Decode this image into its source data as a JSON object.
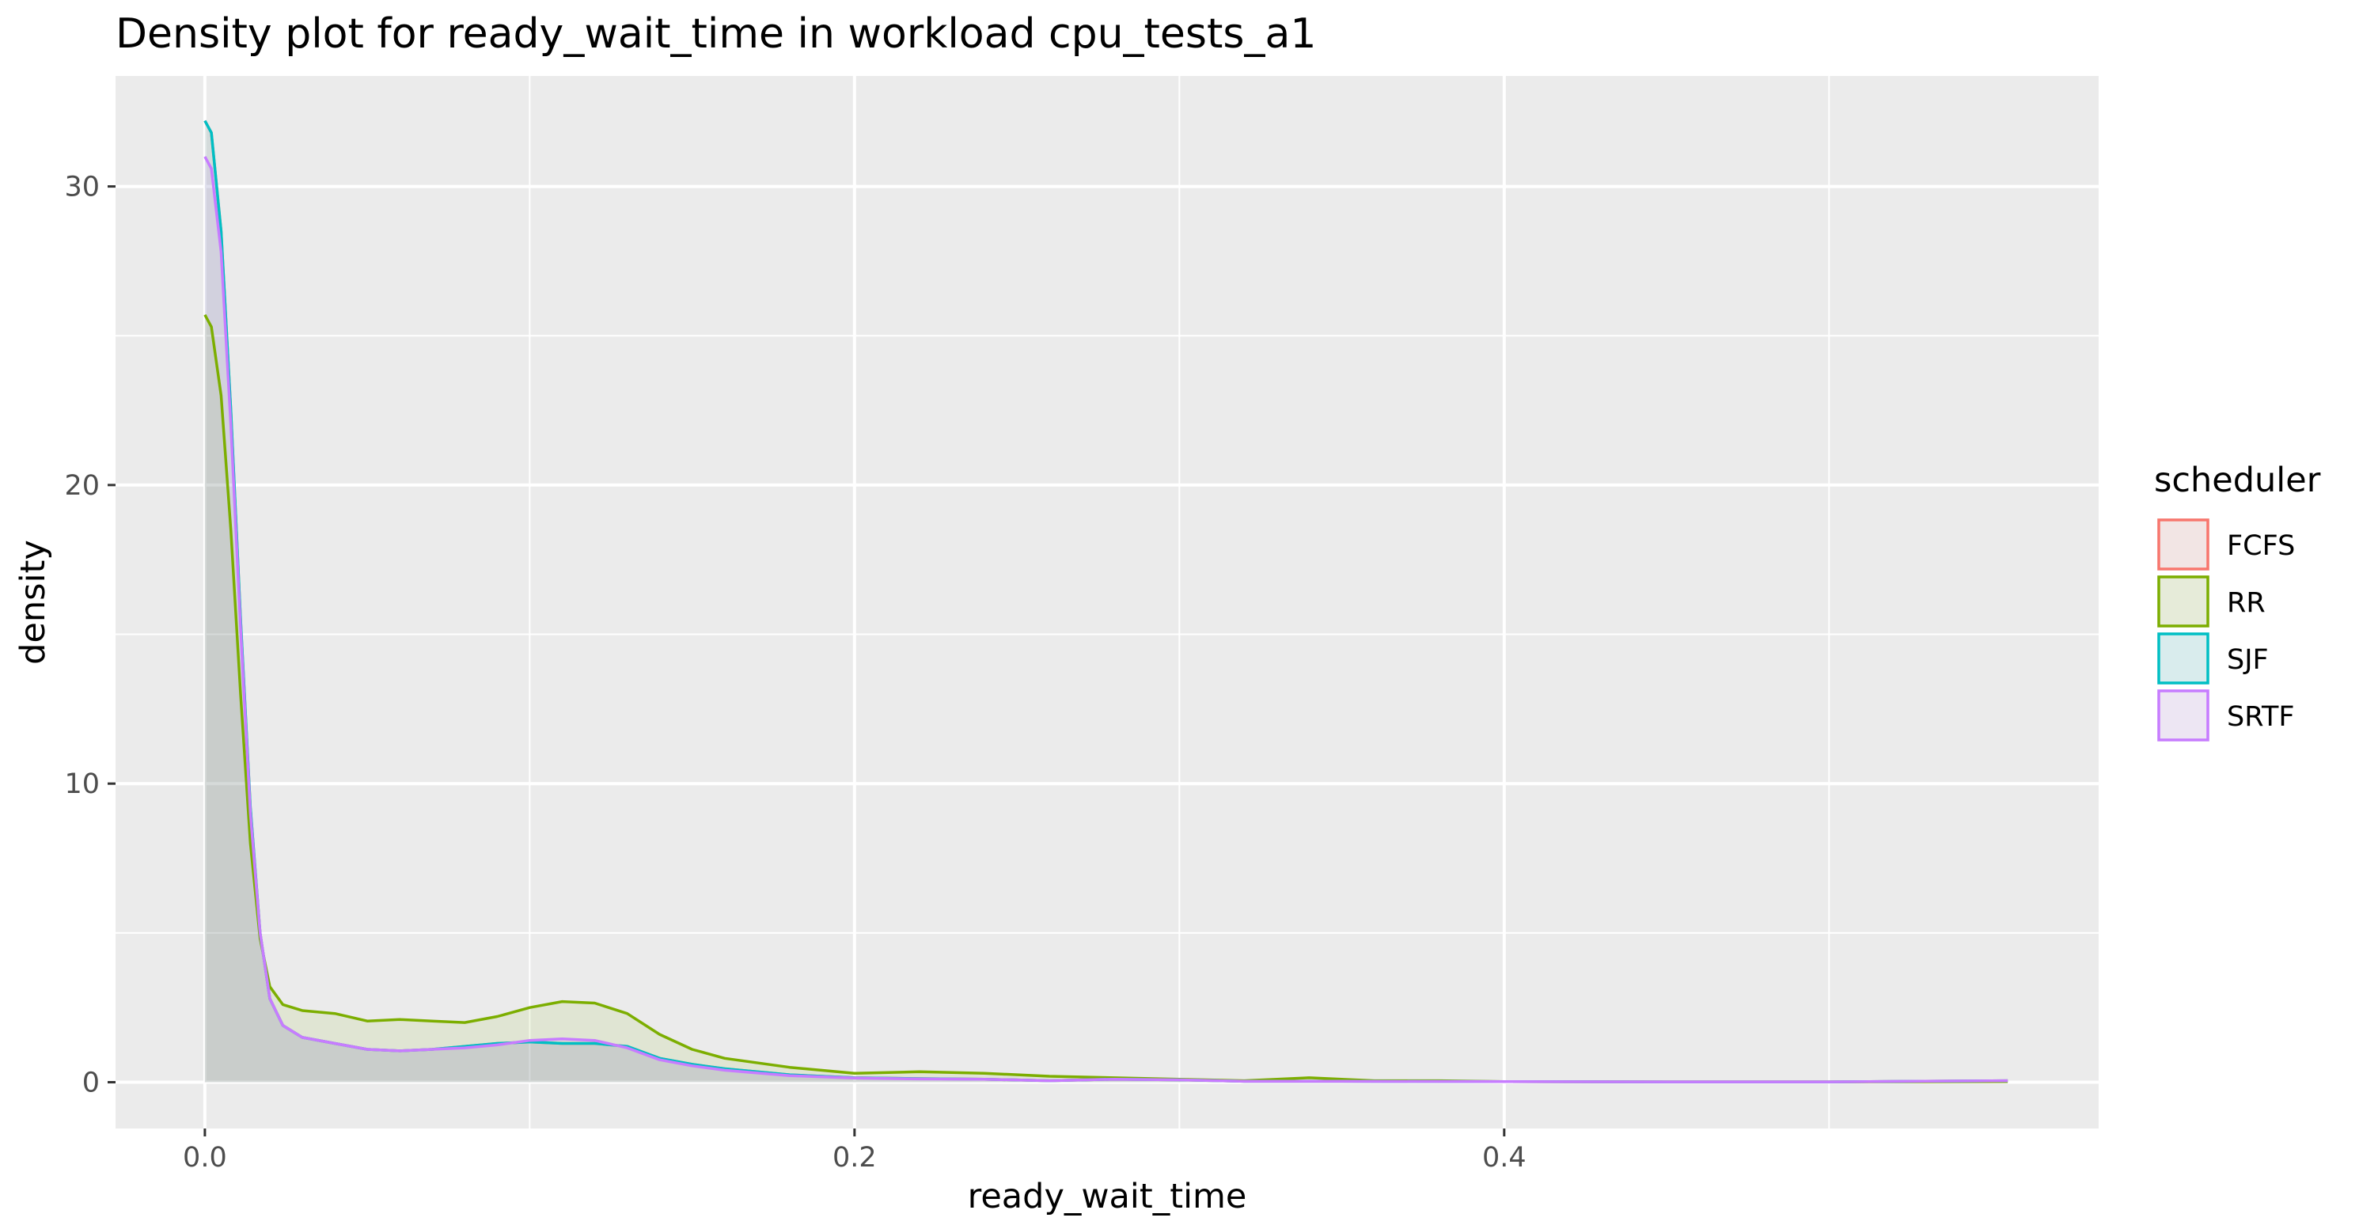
{
  "chart_data": {
    "type": "area",
    "title": "Density plot for ready_wait_time in workload cpu_tests_a1",
    "xlabel": "ready_wait_time",
    "ylabel": "density",
    "xlim": [
      -0.0275,
      0.583
    ],
    "ylim": [
      -1.55,
      33.7
    ],
    "x_ticks": [
      0.0,
      0.2,
      0.4
    ],
    "x_tick_labels": [
      "0.0",
      "0.2",
      "0.4"
    ],
    "x_minor_ticks": [
      0.1,
      0.3,
      0.5
    ],
    "y_ticks": [
      0,
      10,
      20,
      30
    ],
    "y_tick_labels": [
      "0",
      "10",
      "20",
      "30"
    ],
    "y_minor_ticks": [
      5,
      15,
      25
    ],
    "grid": true,
    "legend": {
      "title": "scheduler",
      "position": "right"
    },
    "series": [
      {
        "name": "FCFS",
        "color": "#F8766D",
        "points": [
          [
            0.0,
            32.2
          ],
          [
            0.002,
            31.8
          ],
          [
            0.005,
            28.5
          ],
          [
            0.008,
            22.5
          ],
          [
            0.011,
            15.5
          ],
          [
            0.014,
            9.2
          ],
          [
            0.017,
            5.0
          ],
          [
            0.02,
            2.8
          ],
          [
            0.024,
            1.9
          ],
          [
            0.03,
            1.5
          ],
          [
            0.04,
            1.3
          ],
          [
            0.05,
            1.1
          ],
          [
            0.06,
            1.05
          ],
          [
            0.07,
            1.1
          ],
          [
            0.08,
            1.2
          ],
          [
            0.09,
            1.3
          ],
          [
            0.1,
            1.35
          ],
          [
            0.11,
            1.3
          ],
          [
            0.12,
            1.3
          ],
          [
            0.13,
            1.2
          ],
          [
            0.14,
            0.8
          ],
          [
            0.15,
            0.6
          ],
          [
            0.16,
            0.45
          ],
          [
            0.18,
            0.25
          ],
          [
            0.2,
            0.15
          ],
          [
            0.22,
            0.12
          ],
          [
            0.24,
            0.1
          ],
          [
            0.26,
            0.05
          ],
          [
            0.28,
            0.1
          ],
          [
            0.3,
            0.08
          ],
          [
            0.32,
            0.03
          ],
          [
            0.35,
            0.03
          ],
          [
            0.4,
            0.02
          ],
          [
            0.45,
            0.01
          ],
          [
            0.5,
            0.01
          ],
          [
            0.555,
            0.05
          ]
        ]
      },
      {
        "name": "RR",
        "color": "#7CAE00",
        "points": [
          [
            0.0,
            25.7
          ],
          [
            0.002,
            25.3
          ],
          [
            0.005,
            23.0
          ],
          [
            0.008,
            18.5
          ],
          [
            0.011,
            13.0
          ],
          [
            0.014,
            8.0
          ],
          [
            0.017,
            4.8
          ],
          [
            0.02,
            3.2
          ],
          [
            0.024,
            2.6
          ],
          [
            0.03,
            2.4
          ],
          [
            0.04,
            2.3
          ],
          [
            0.05,
            2.05
          ],
          [
            0.06,
            2.1
          ],
          [
            0.07,
            2.05
          ],
          [
            0.08,
            2.0
          ],
          [
            0.09,
            2.2
          ],
          [
            0.1,
            2.5
          ],
          [
            0.11,
            2.7
          ],
          [
            0.12,
            2.65
          ],
          [
            0.13,
            2.3
          ],
          [
            0.14,
            1.6
          ],
          [
            0.15,
            1.1
          ],
          [
            0.16,
            0.8
          ],
          [
            0.18,
            0.5
          ],
          [
            0.2,
            0.3
          ],
          [
            0.22,
            0.35
          ],
          [
            0.24,
            0.3
          ],
          [
            0.26,
            0.2
          ],
          [
            0.28,
            0.15
          ],
          [
            0.3,
            0.1
          ],
          [
            0.32,
            0.05
          ],
          [
            0.34,
            0.15
          ],
          [
            0.36,
            0.05
          ],
          [
            0.38,
            0.05
          ],
          [
            0.4,
            0.02
          ],
          [
            0.45,
            0.01
          ],
          [
            0.5,
            0.01
          ],
          [
            0.555,
            0.02
          ]
        ]
      },
      {
        "name": "SJF",
        "color": "#00BFC4",
        "points": [
          [
            0.0,
            32.2
          ],
          [
            0.002,
            31.8
          ],
          [
            0.005,
            28.5
          ],
          [
            0.008,
            22.5
          ],
          [
            0.011,
            15.5
          ],
          [
            0.014,
            9.2
          ],
          [
            0.017,
            5.0
          ],
          [
            0.02,
            2.8
          ],
          [
            0.024,
            1.9
          ],
          [
            0.03,
            1.5
          ],
          [
            0.04,
            1.3
          ],
          [
            0.05,
            1.1
          ],
          [
            0.06,
            1.05
          ],
          [
            0.07,
            1.1
          ],
          [
            0.08,
            1.2
          ],
          [
            0.09,
            1.3
          ],
          [
            0.1,
            1.35
          ],
          [
            0.11,
            1.3
          ],
          [
            0.12,
            1.3
          ],
          [
            0.13,
            1.2
          ],
          [
            0.14,
            0.8
          ],
          [
            0.15,
            0.6
          ],
          [
            0.16,
            0.45
          ],
          [
            0.18,
            0.25
          ],
          [
            0.2,
            0.15
          ],
          [
            0.22,
            0.12
          ],
          [
            0.24,
            0.1
          ],
          [
            0.26,
            0.05
          ],
          [
            0.28,
            0.1
          ],
          [
            0.3,
            0.08
          ],
          [
            0.32,
            0.03
          ],
          [
            0.35,
            0.03
          ],
          [
            0.4,
            0.02
          ],
          [
            0.45,
            0.01
          ],
          [
            0.5,
            0.01
          ],
          [
            0.555,
            0.05
          ]
        ]
      },
      {
        "name": "SRTF",
        "color": "#C77CFF",
        "points": [
          [
            0.0,
            31.0
          ],
          [
            0.002,
            30.6
          ],
          [
            0.005,
            27.8
          ],
          [
            0.008,
            22.0
          ],
          [
            0.011,
            15.2
          ],
          [
            0.014,
            9.0
          ],
          [
            0.017,
            5.0
          ],
          [
            0.02,
            2.8
          ],
          [
            0.024,
            1.9
          ],
          [
            0.03,
            1.5
          ],
          [
            0.04,
            1.3
          ],
          [
            0.05,
            1.1
          ],
          [
            0.06,
            1.05
          ],
          [
            0.07,
            1.1
          ],
          [
            0.08,
            1.15
          ],
          [
            0.09,
            1.25
          ],
          [
            0.1,
            1.4
          ],
          [
            0.11,
            1.45
          ],
          [
            0.12,
            1.4
          ],
          [
            0.13,
            1.15
          ],
          [
            0.14,
            0.75
          ],
          [
            0.15,
            0.55
          ],
          [
            0.16,
            0.4
          ],
          [
            0.18,
            0.22
          ],
          [
            0.2,
            0.14
          ],
          [
            0.22,
            0.11
          ],
          [
            0.24,
            0.1
          ],
          [
            0.26,
            0.05
          ],
          [
            0.28,
            0.1
          ],
          [
            0.3,
            0.08
          ],
          [
            0.32,
            0.03
          ],
          [
            0.35,
            0.03
          ],
          [
            0.4,
            0.02
          ],
          [
            0.45,
            0.01
          ],
          [
            0.5,
            0.01
          ],
          [
            0.555,
            0.05
          ]
        ]
      }
    ]
  }
}
